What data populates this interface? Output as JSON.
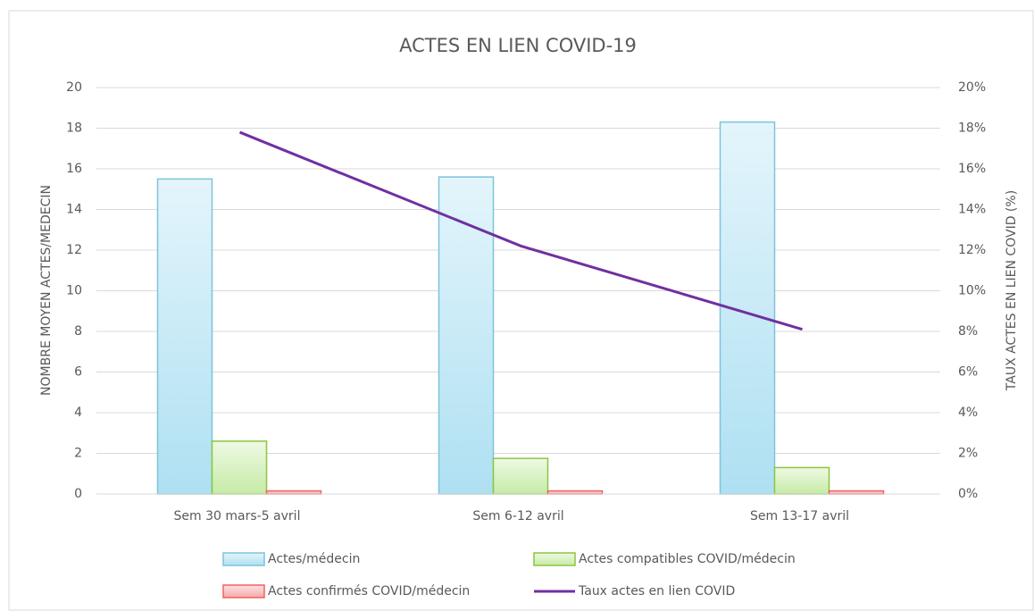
{
  "chart_data": {
    "type": "bar",
    "title": "ACTES EN LIEN COVID-19",
    "ylabel": "NOMBRE MOYEN ACTES/MEDECIN",
    "y2label": "TAUX ACTES EN LIEN COVID (%)",
    "categories": [
      "Sem 30 mars-5 avril",
      "Sem 6-12 avril",
      "Sem 13-17 avril"
    ],
    "series": [
      {
        "name": "Actes/médecin",
        "color": "#c6e9f6",
        "values": [
          15.5,
          15.6,
          18.3
        ]
      },
      {
        "name": "Actes compatibles COVID/médecin",
        "color": "#d9f2c4",
        "values": [
          2.6,
          1.75,
          1.3
        ]
      },
      {
        "name": "Actes confirmés COVID/médecin",
        "color": "#f9c4c4",
        "values": [
          0.15,
          0.15,
          0.15
        ]
      },
      {
        "name": "Taux actes en lien COVID",
        "color": "#7030a0",
        "type": "line",
        "axis": "y2",
        "values": [
          17.8,
          12.2,
          8.1
        ]
      }
    ],
    "ylim": [
      0,
      20
    ],
    "yticks": [
      0,
      2,
      4,
      6,
      8,
      10,
      12,
      14,
      16,
      18,
      20
    ],
    "y2lim": [
      0,
      20
    ],
    "y2ticks": [
      {
        "value": 0,
        "label": "0%"
      },
      {
        "value": 2,
        "label": "2%"
      },
      {
        "value": 4,
        "label": "4%"
      },
      {
        "value": 6,
        "label": "6%"
      },
      {
        "value": 8,
        "label": "8%"
      },
      {
        "value": 10,
        "label": "10%"
      },
      {
        "value": 12,
        "label": "12%"
      },
      {
        "value": 14,
        "label": "14%"
      },
      {
        "value": 16,
        "label": "16%"
      },
      {
        "value": 18,
        "label": "18%"
      },
      {
        "value": 20,
        "label": "20%"
      }
    ],
    "grid": true
  }
}
